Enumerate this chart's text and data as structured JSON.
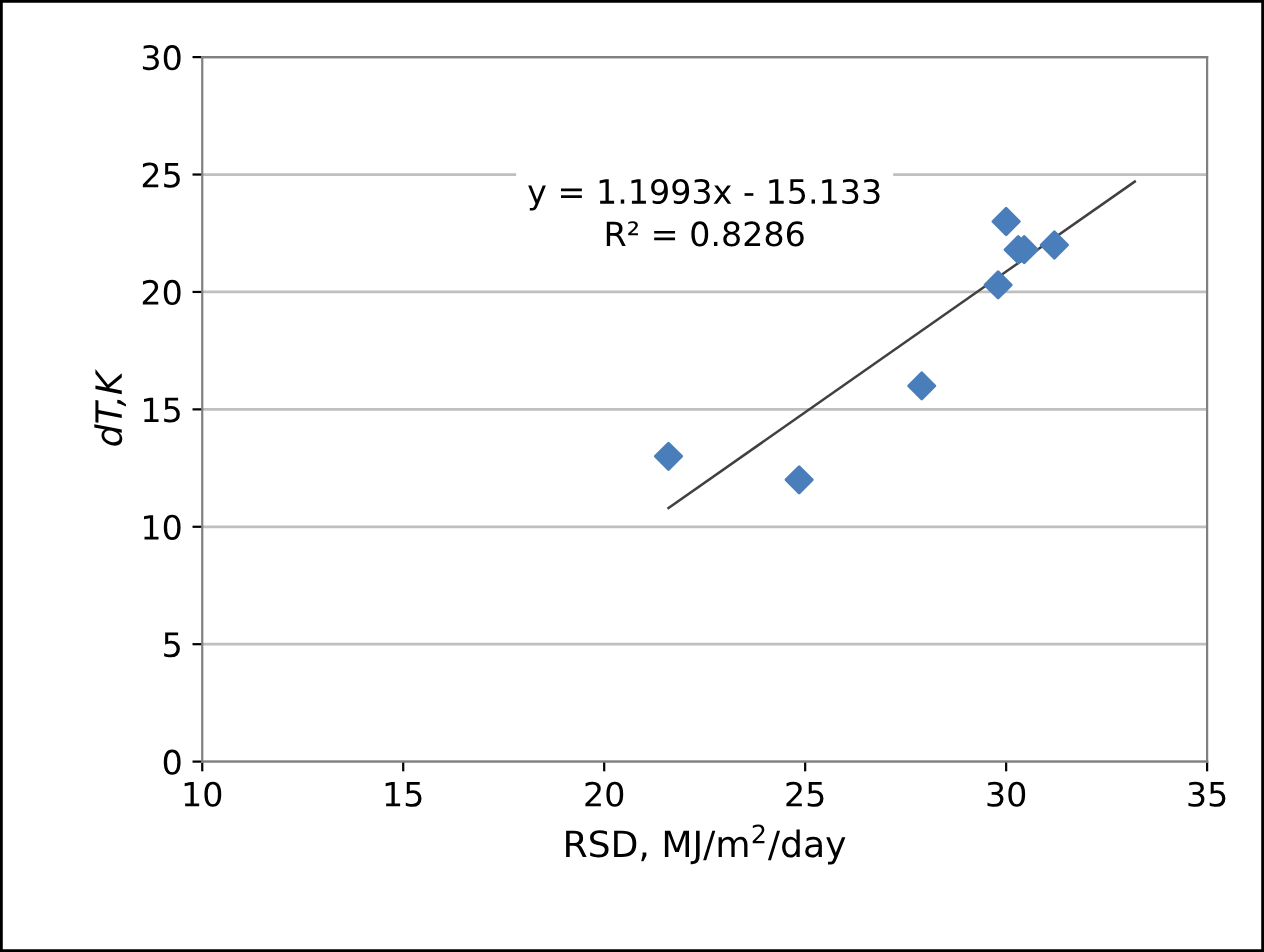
{
  "chart_data": {
    "type": "scatter",
    "xlabel": "RSD, MJ/m$^{2}$/day",
    "ylabel": "dT,K",
    "xlim": [
      10,
      35
    ],
    "xticks": [
      10,
      15,
      20,
      25,
      30,
      35
    ],
    "ylim": [
      0,
      30
    ],
    "yticks": [
      0,
      5,
      10,
      15,
      20,
      25,
      30
    ],
    "grid": "y",
    "legend": false,
    "series": [
      {
        "marker": "diamond",
        "color": "#4a7ebb",
        "x": [
          21.6,
          24.85,
          27.9,
          29.8,
          30.0,
          30.3,
          30.45,
          31.2
        ],
        "values": [
          13.0,
          12.0,
          16.0,
          20.3,
          23.0,
          21.8,
          21.8,
          22.0
        ]
      },
      {
        "type": "line",
        "marker": "none",
        "line_style": "solid",
        "color": "#404040",
        "x": [
          21.6,
          33.2
        ],
        "values": [
          10.8,
          24.7
        ]
      }
    ],
    "annotations": [
      "y = 1.1993x - 15.133\nR² = 0.8286"
    ]
  }
}
